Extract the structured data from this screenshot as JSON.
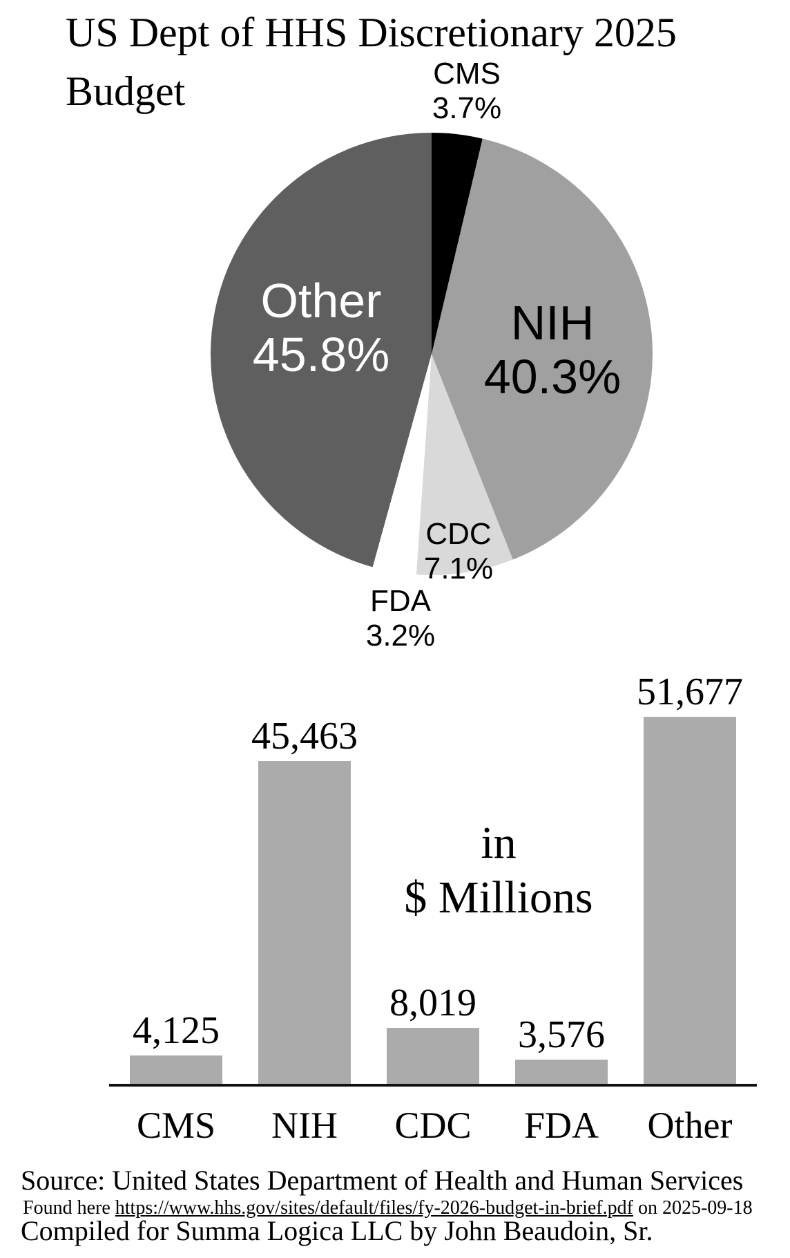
{
  "title": {
    "line1": "US Dept of HHS Discretionary 2025",
    "line2": "Budget"
  },
  "center_note": {
    "line1": "in",
    "line2": "$ Millions"
  },
  "chart_data": [
    {
      "type": "pie",
      "title": "US Dept of HHS Discretionary 2025 Budget",
      "start_angle_deg": 0,
      "direction": "clockwise",
      "slices": [
        {
          "label": "CMS",
          "pct": 3.7,
          "pct_label": "3.7%",
          "color": "#000000"
        },
        {
          "label": "NIH",
          "pct": 40.3,
          "pct_label": "40.3%",
          "color": "#a0a0a0"
        },
        {
          "label": "CDC",
          "pct": 7.1,
          "pct_label": "7.1%",
          "color": "#d9d9d9"
        },
        {
          "label": "FDA",
          "pct": 3.2,
          "pct_label": "3.2%",
          "color": "#ffffff"
        },
        {
          "label": "Other",
          "pct": 45.8,
          "pct_label": "45.8%",
          "color": "#5f5f5f"
        }
      ]
    },
    {
      "type": "bar",
      "categories": [
        "CMS",
        "NIH",
        "CDC",
        "FDA",
        "Other"
      ],
      "values": [
        4125,
        45463,
        8019,
        3576,
        51677
      ],
      "value_labels": [
        "4,125",
        "45,463",
        "8,019",
        "3,576",
        "51,677"
      ],
      "unit_note": "in $ Millions",
      "bar_color": "#ababab",
      "ylim": [
        0,
        51677
      ],
      "grid": false,
      "legend": "none"
    }
  ],
  "footer": {
    "source": "Source: United States Department of Health and Human Services",
    "found_prefix": "Found here ",
    "found_link": "https://www.hhs.gov/sites/default/files/fy-2026-budget-in-brief.pdf",
    "found_suffix": " on 2025-09-18",
    "compiled": "Compiled for Summa Logica LLC by John Beaudoin, Sr."
  }
}
